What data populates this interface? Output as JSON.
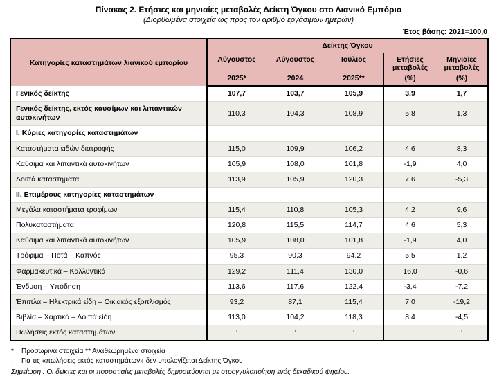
{
  "page": {
    "title": "Πίνακας 2. Ετήσιες και μηνιαίες μεταβολές Δείκτη Όγκου στο Λιανικό Εμπόριο",
    "subtitle": "(Διορθωμένα στοιχεία ως προς τον αριθμό εργάσιμων ημερών)",
    "base_year": "Έτος βάσης: 2021=100,0"
  },
  "table": {
    "corner_header": "Κατηγορίες καταστημάτων λιανικού εμπορίου",
    "group_header": "Δείκτης Όγκου",
    "columns": [
      {
        "line1": "Αύγουστος",
        "line2": "2025*"
      },
      {
        "line1": "Αύγουστος",
        "line2": "2024"
      },
      {
        "line1": "Ιούλιος",
        "line2": "2025**"
      },
      {
        "line1": "Ετήσιες μεταβολές",
        "line2": "(%)"
      },
      {
        "line1": "Μηνιαίες μεταβολές",
        "line2": "(%)"
      }
    ],
    "rows": [
      {
        "label": "Γενικός δείκτης",
        "values": [
          "107,7",
          "103,7",
          "105,9",
          "3,9",
          "1,7"
        ]
      },
      {
        "label": "Γενικός δείκτης, εκτός καυσίμων και λιπαντικών αυτοκινήτων",
        "values": [
          "110,3",
          "104,3",
          "108,9",
          "5,8",
          "1,3"
        ]
      },
      {
        "label": "Ι. Κύριες κατηγορίες καταστημάτων",
        "values": [
          "",
          "",
          "",
          "",
          ""
        ]
      },
      {
        "label": "Καταστήματα ειδών διατροφής",
        "values": [
          "115,0",
          "109,9",
          "106,2",
          "4,6",
          "8,3"
        ]
      },
      {
        "label": "Καύσιμα και λιπαντικά αυτοκινήτων",
        "values": [
          "105,9",
          "108,0",
          "101,8",
          "-1,9",
          "4,0"
        ]
      },
      {
        "label": "Λοιπά καταστήματα",
        "values": [
          "113,9",
          "105,9",
          "120,3",
          "7,6",
          "-5,3"
        ]
      },
      {
        "label": "ΙΙ. Επιμέρους κατηγορίες καταστημάτων",
        "values": [
          "",
          "",
          "",
          "",
          ""
        ]
      },
      {
        "label": "Μεγάλα καταστήματα τροφίμων",
        "values": [
          "115,4",
          "110,8",
          "105,3",
          "4,2",
          "9,6"
        ]
      },
      {
        "label": "Πολυκαταστήματα",
        "values": [
          "120,8",
          "115,5",
          "114,7",
          "4,6",
          "5,3"
        ]
      },
      {
        "label": "Καύσιμα και λιπαντικά αυτοκινήτων",
        "values": [
          "105,9",
          "108,0",
          "101,8",
          "-1,9",
          "4,0"
        ]
      },
      {
        "label": "Τρόφιμα – Ποτά – Καπνός",
        "values": [
          "95,3",
          "90,3",
          "94,2",
          "5,5",
          "1,2"
        ]
      },
      {
        "label": "Φαρμακευτικά – Καλλυντικά",
        "values": [
          "129,2",
          "111,4",
          "130,0",
          "16,0",
          "-0,6"
        ]
      },
      {
        "label": "Ένδυση – Υπόδηση",
        "values": [
          "113,6",
          "117,6",
          "122,4",
          "-3,4",
          "-7,2"
        ]
      },
      {
        "label": "Έπιπλα – Ηλεκτρικά είδη – Οικιακός εξοπλισμός",
        "values": [
          "93,2",
          "87,1",
          "115,4",
          "7,0",
          "-19,2"
        ]
      },
      {
        "label": "Βιβλία – Χαρτικά – Λοιπά είδη",
        "values": [
          "113,0",
          "104,2",
          "118,3",
          "8,4",
          "-4,5"
        ]
      },
      {
        "label": "Πωλήσεις εκτός καταστημάτων",
        "values": [
          ":",
          ":",
          ":",
          ":",
          ":"
        ]
      }
    ]
  },
  "footnotes": {
    "line1_marker": "*",
    "line1_text": "Προσωρινά στοιχεία  **  Αναθεωρημένα στοιχεία",
    "line2_marker": ":",
    "line2_text": "Για τις «πωλήσεις εκτός καταστημάτων» δεν υπολογίζεται Δείκτης Όγκου",
    "note": "Σημείωση : Οι δείκτες και οι ποσοστιαίες μεταβολές δημοσιεύονται με στρογγυλοποίηση ενός δεκαδικού ψηφίου."
  },
  "colors": {
    "header_pink": "#E7BAB8",
    "stripe_gray": "#EFEDE8",
    "border": "#000000"
  }
}
